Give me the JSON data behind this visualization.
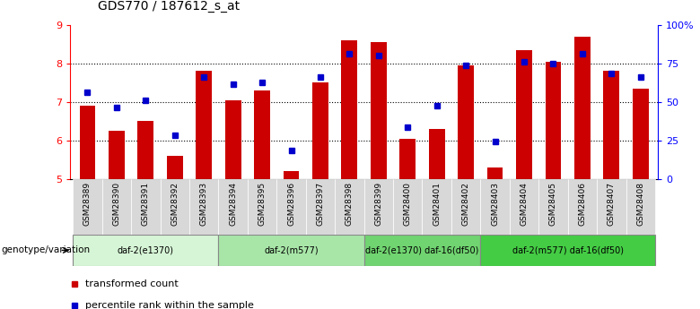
{
  "title": "GDS770 / 187612_s_at",
  "samples": [
    "GSM28389",
    "GSM28390",
    "GSM28391",
    "GSM28392",
    "GSM28393",
    "GSM28394",
    "GSM28395",
    "GSM28396",
    "GSM28397",
    "GSM28398",
    "GSM28399",
    "GSM28400",
    "GSM28401",
    "GSM28402",
    "GSM28403",
    "GSM28404",
    "GSM28405",
    "GSM28406",
    "GSM28407",
    "GSM28408"
  ],
  "bar_values": [
    6.9,
    6.25,
    6.5,
    5.6,
    7.8,
    7.05,
    7.3,
    5.2,
    7.5,
    8.6,
    8.55,
    6.05,
    6.3,
    7.95,
    5.3,
    8.35,
    8.05,
    8.7,
    7.8,
    7.35
  ],
  "dot_values": [
    7.25,
    6.85,
    7.05,
    6.15,
    7.65,
    7.45,
    7.5,
    5.75,
    7.65,
    8.25,
    8.2,
    6.35,
    6.9,
    7.95,
    5.97,
    8.05,
    8.0,
    8.25,
    7.75,
    7.65
  ],
  "bar_color": "#cc0000",
  "dot_color": "#0000cc",
  "ylim_left": [
    5,
    9
  ],
  "ylim_right": [
    0,
    100
  ],
  "yticks_left": [
    5,
    6,
    7,
    8,
    9
  ],
  "yticks_right": [
    0,
    25,
    50,
    75,
    100
  ],
  "ytick_labels_right": [
    "0",
    "25",
    "50",
    "75",
    "100%"
  ],
  "groups": [
    {
      "label": "daf-2(e1370)",
      "start": 0,
      "end": 4,
      "color": "#d6f5d6"
    },
    {
      "label": "daf-2(m577)",
      "start": 5,
      "end": 9,
      "color": "#a8e6a8"
    },
    {
      "label": "daf-2(e1370) daf-16(df50)",
      "start": 10,
      "end": 13,
      "color": "#70d470"
    },
    {
      "label": "daf-2(m577) daf-16(df50)",
      "start": 14,
      "end": 19,
      "color": "#44cc44"
    }
  ],
  "genotype_label": "genotype/variation",
  "legend_bar_label": "transformed count",
  "legend_dot_label": "percentile rank within the sample",
  "grid_yticks": [
    6,
    7,
    8
  ],
  "bar_width": 0.55,
  "cell_color": "#d8d8d8"
}
